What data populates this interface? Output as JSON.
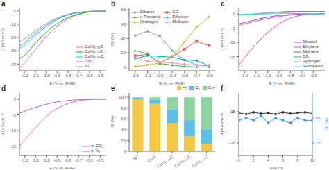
{
  "chart_data": [
    {
      "type": "line",
      "title": "a",
      "x_label": "E (V vs. RHE)",
      "y_label": "J (mA cm⁻²)",
      "x": [
        -1.25,
        -1.2,
        -1.15,
        -1.1,
        -1.05,
        -1.0,
        -0.95,
        -0.9,
        -0.85,
        -0.8,
        -0.75,
        -0.7,
        -0.65,
        -0.6,
        -0.55,
        -0.5,
        -0.45
      ],
      "series": [
        {
          "name": "Cu/N₀.₁₄C",
          "color": "#FF69B4",
          "values": [
            -43,
            -39,
            -34,
            -29,
            -24,
            -19,
            -15,
            -11.5,
            -8.5,
            -6,
            -4,
            -2.5,
            -1.5,
            -0.8,
            -0.3,
            -0.1,
            0
          ]
        },
        {
          "name": "Cu/N₀.₁₂C",
          "color": "#00BB00",
          "values": [
            -36,
            -33,
            -29,
            -24,
            -20,
            -16,
            -12.5,
            -9.5,
            -7,
            -5,
            -3.5,
            -2.3,
            -1.4,
            -0.7,
            -0.3,
            -0.1,
            0
          ]
        },
        {
          "name": "Cu/N₀.₀₈C",
          "color": "#00CCFF",
          "values": [
            -28,
            -26,
            -22,
            -18,
            -15,
            -11.5,
            -9,
            -6.5,
            -4.5,
            -3,
            -2,
            -1.3,
            -0.8,
            -0.4,
            -0.15,
            -0.05,
            0
          ]
        },
        {
          "name": "Cu/C",
          "color": "#6699EE",
          "values": [
            -26,
            -24,
            -20,
            -17,
            -13.5,
            -10.5,
            -8,
            -6,
            -4.2,
            -2.8,
            -1.8,
            -1.1,
            -0.6,
            -0.3,
            -0.1,
            -0.03,
            0
          ]
        },
        {
          "name": "NC",
          "color": "#999999",
          "values": [
            -23,
            -21,
            -18,
            -15,
            -12,
            -9.5,
            -7.2,
            -5.3,
            -3.7,
            -2.5,
            -1.6,
            -1.0,
            -0.6,
            -0.3,
            -0.1,
            -0.03,
            0
          ]
        }
      ],
      "xlim": [
        -1.25,
        -0.45
      ],
      "ylim": [
        -45,
        2
      ],
      "xticks": [
        -1.2,
        -1.1,
        {
          "value": -1.0,
          "label": "-1.0"
        },
        -0.9,
        -0.8,
        -0.7,
        -0.6,
        -0.5
      ],
      "yticks": [
        -40,
        -30,
        -20,
        -10,
        0
      ],
      "legend": "lower right",
      "grid": false
    },
    {
      "type": "line",
      "title": "b",
      "x_label": "E (V vs. RHE)",
      "y_label": "FE (%)",
      "x": [
        -1.2,
        -1.1,
        -1.0,
        -0.9,
        -0.8,
        -0.7,
        -0.6
      ],
      "series": [
        {
          "name": "Ethanol",
          "color": "#7799CC",
          "marker": "circle",
          "values": [
            44,
            50,
            43,
            23,
            10,
            3,
            2
          ]
        },
        {
          "name": "CO",
          "color": "#EE5544",
          "marker": "square",
          "values": [
            16,
            18,
            6,
            15,
            25,
            36,
            30
          ]
        },
        {
          "name": "n-Propanol",
          "color": "#44AA44",
          "marker": "triangle",
          "values": [
            23,
            19,
            5,
            3,
            1,
            0.5,
            0.5
          ]
        },
        {
          "name": "Ethylene",
          "color": "#00AACC",
          "marker": "diamond",
          "values": [
            12,
            16,
            15,
            14,
            10,
            9,
            2
          ]
        },
        {
          "name": "Hydrogen",
          "color": "#BBBB22",
          "marker": "triangle-down",
          "values": [
            1,
            3,
            6,
            14,
            35,
            56,
            70
          ]
        },
        {
          "name": "Methane",
          "color": "#EE99BB",
          "marker": "pentagon",
          "values": [
            13,
            8,
            7,
            6,
            4,
            3,
            3
          ]
        }
      ],
      "xlim": [
        -1.25,
        -0.55
      ],
      "ylim": [
        -5,
        82
      ],
      "xticks": [
        -1.2,
        -1.1,
        {
          "value": -1.0,
          "label": "-1.0"
        },
        -0.9,
        -0.8,
        -0.7,
        -0.6
      ],
      "yticks": [
        0,
        20,
        40,
        60,
        80
      ],
      "legend": "upper left",
      "grid": false
    },
    {
      "type": "line",
      "title": "c",
      "x_label": "E (V vs. RHE)",
      "y_label": "J (mA cm⁻²)",
      "x": [
        -1.25,
        -1.2,
        -1.15,
        -1.1,
        -1.05,
        -1.0,
        -0.95,
        -0.9,
        -0.85,
        -0.8,
        -0.75,
        -0.7,
        -0.65,
        -0.6,
        -0.55,
        -0.5
      ],
      "series": [
        {
          "name": "Ethanol",
          "color": "#FF44AA",
          "values": [
            -18,
            -15.5,
            -13,
            -10.5,
            -8.5,
            -6.5,
            -5,
            -3.5,
            -2.3,
            -1.4,
            -0.8,
            -0.4,
            -0.15,
            -0.05,
            0,
            0
          ]
        },
        {
          "name": "Ethylene",
          "color": "#CC55FF",
          "values": [
            -4,
            -3.5,
            -3,
            -2.5,
            -2,
            -1.6,
            -1.2,
            -0.9,
            -0.6,
            -0.4,
            -0.25,
            -0.14,
            -0.07,
            -0.03,
            0,
            0
          ]
        },
        {
          "name": "Methane",
          "color": "#9944CC",
          "values": [
            -3.5,
            -3,
            -2.5,
            -2,
            -1.5,
            -1.1,
            -0.8,
            -0.5,
            -0.35,
            -0.22,
            -0.13,
            -0.07,
            -0.03,
            -0.01,
            0,
            0
          ]
        },
        {
          "name": "CO",
          "color": "#00AAFF",
          "values": [
            -0.3,
            -0.2,
            -0.1,
            0,
            0.1,
            0.3,
            0.5,
            0.7,
            0.8,
            0.9,
            0.9,
            0.9,
            0.9,
            0.9,
            0.9,
            0.9
          ]
        },
        {
          "name": "Hydrogen",
          "color": "#AAAAAA",
          "values": [
            -0.5,
            -0.3,
            -0.1,
            0.1,
            0.3,
            0.4,
            0.5,
            0.5,
            0.4,
            0.3,
            0.2,
            0.1,
            0.05,
            0,
            0,
            0
          ]
        },
        {
          "name": "n-Propanol",
          "color": "#44DDDD",
          "values": [
            -0.2,
            -0.15,
            -0.1,
            -0.05,
            0,
            0.05,
            0.1,
            0.15,
            0.18,
            0.18,
            0.16,
            0.12,
            0.08,
            0.04,
            0,
            0
          ]
        }
      ],
      "xlim": [
        -1.25,
        -0.5
      ],
      "ylim": [
        -20,
        2
      ],
      "xticks": [
        -1.2,
        -1.1,
        {
          "value": -1.0,
          "label": "-1.0"
        },
        -0.9,
        -0.8,
        -0.7,
        -0.6
      ],
      "yticks": [
        -15,
        -10,
        -5,
        0
      ],
      "legend": "lower right",
      "grid": false
    },
    {
      "type": "line",
      "title": "d",
      "x_label": "E (V vs. RHE)",
      "y_label": "J (mA cm⁻²)",
      "x": [
        -1.25,
        -1.2,
        -1.15,
        -1.1,
        -1.05,
        -1.0,
        -0.95,
        -0.9,
        -0.85,
        -0.8,
        -0.75,
        -0.7,
        -0.65,
        -0.6,
        -0.55,
        -0.5,
        -0.45
      ],
      "series": [
        {
          "name": "in CO₂",
          "color": "#FF69B4",
          "values": [
            -15,
            -13,
            -11,
            -9,
            -7.2,
            -5.5,
            -4.1,
            -3,
            -2.1,
            -1.4,
            -0.9,
            -0.5,
            -0.25,
            -0.1,
            -0.03,
            -0.01,
            0
          ]
        },
        {
          "name": "in N₂",
          "color": "#AA66DD",
          "values": [
            -4.5,
            -3.8,
            -3.2,
            -2.6,
            -2.1,
            -1.6,
            -1.2,
            -0.85,
            -0.6,
            -0.4,
            -0.25,
            -0.15,
            -0.08,
            -0.04,
            -0.01,
            0,
            0
          ]
        }
      ],
      "xlim": [
        -1.25,
        -0.45
      ],
      "ylim": [
        -18,
        2
      ],
      "xticks": [
        -1.2,
        -1.1,
        {
          "value": -1.0,
          "label": "-1.0"
        },
        -0.9,
        -0.8,
        -0.7,
        -0.6,
        -0.5
      ],
      "yticks": [
        -15,
        -10,
        -5,
        0
      ],
      "legend": "lower right",
      "grid": false
    },
    {
      "type": "bar",
      "title": "e",
      "y_label": "FE (%)",
      "stacked": true,
      "categories": [
        "NC",
        "Cu/C",
        "Cu/N₀.₀₈C",
        "Cu/N₀.₁₂C",
        "Cu/N₀.₁₄C"
      ],
      "series": [
        {
          "name": "H₂",
          "color": "#F5C842",
          "values": [
            96,
            88,
            52,
            28,
            14
          ]
        },
        {
          "name": "C₁",
          "color": "#5BBFEA",
          "values": [
            3,
            8,
            24,
            30,
            26
          ]
        },
        {
          "name": "C₂+",
          "color": "#8DD4A0",
          "values": [
            1,
            4,
            24,
            42,
            60
          ]
        }
      ],
      "ylim": [
        0,
        108
      ],
      "yticks": [
        0,
        20,
        40,
        60,
        80,
        100
      ],
      "legend": "upper right",
      "grid": false
    },
    {
      "type": "line",
      "title": "f",
      "x_label": "Time (h)",
      "y_label": "J (mA cm⁻²)",
      "y2_label": "FE (%)",
      "x": [
        0,
        1,
        2,
        3,
        4,
        5,
        6,
        7,
        8,
        9,
        10
      ],
      "series": [
        {
          "color": "#333333",
          "marker": "circle",
          "values": [
            -15.2,
            -15.4,
            -15.1,
            -15.3,
            -15.2,
            -15.4,
            -15.1,
            -15.3,
            -15.2,
            -15.1,
            -15.3
          ]
        },
        {
          "color": "#3399FF",
          "marker": "square",
          "axis": "y2",
          "values": [
            44,
            45,
            44,
            46,
            43,
            45,
            44,
            43,
            45,
            44,
            44
          ]
        }
      ],
      "xlim": [
        0,
        10
      ],
      "ylim": [
        -22,
        -12
      ],
      "y2lim": [
        30,
        55
      ],
      "xticks": [
        0,
        2,
        4,
        6,
        8,
        10
      ],
      "yticks": [
        -20,
        -15
      ],
      "y2ticks": [
        35,
        45
      ],
      "grid": false
    }
  ]
}
